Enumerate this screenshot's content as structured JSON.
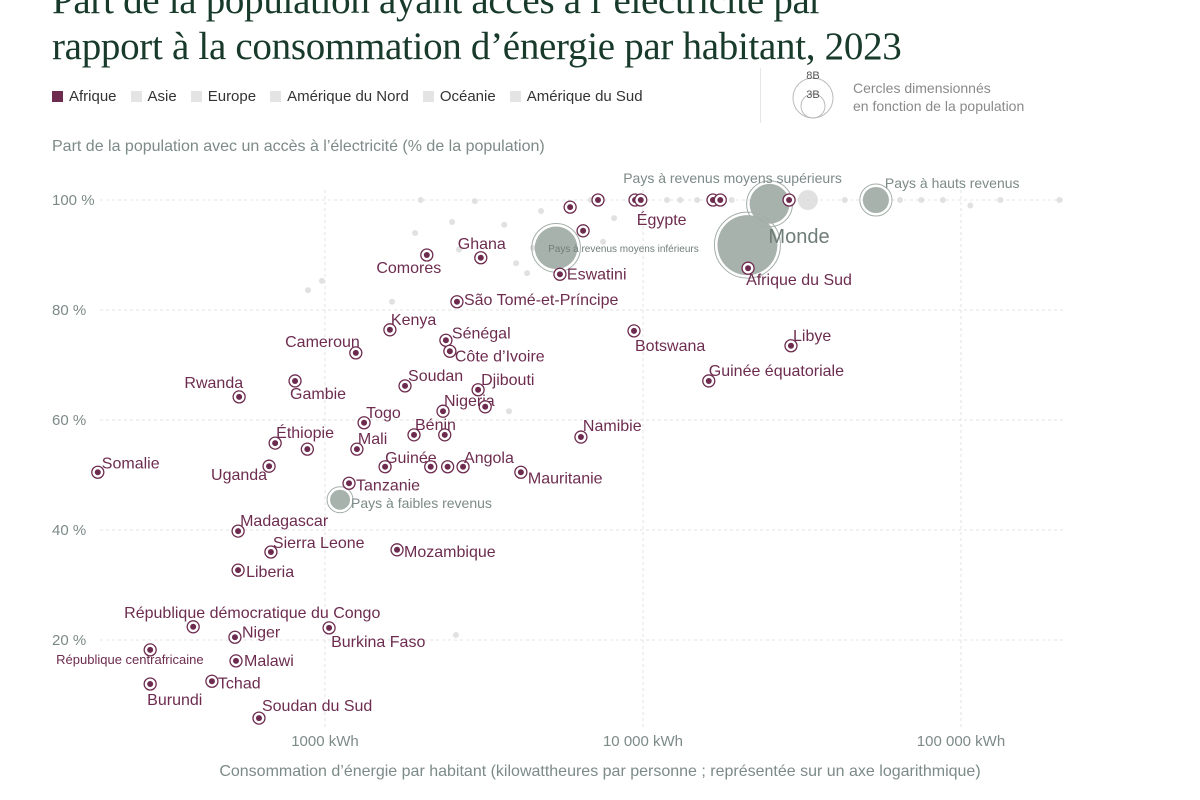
{
  "title": {
    "line1": "Part de la population ayant accès à l’électricité par",
    "line2": "rapport à la consommation d’énergie par habitant, 2023"
  },
  "legend": {
    "items": [
      {
        "label": "Afrique",
        "color": "#6d2c4f"
      },
      {
        "label": "Asie",
        "color": "#e4e4e4"
      },
      {
        "label": "Europe",
        "color": "#e4e4e4"
      },
      {
        "label": "Amérique du Nord",
        "color": "#e4e4e4"
      },
      {
        "label": "Océanie",
        "color": "#e4e4e4"
      },
      {
        "label": "Amérique du Sud",
        "color": "#e4e4e4"
      }
    ],
    "size_key": {
      "large": "8B",
      "small": "3B",
      "note_line1": "Cercles dimensionnés",
      "note_line2": "en fonction de la population"
    }
  },
  "colors": {
    "africa": "#6d2c4f",
    "other": "#dcdcdc",
    "aggregate": "#a3aea9",
    "axis_text": "#7c8a88",
    "title": "#173a2b"
  },
  "chart_data": {
    "type": "scatter",
    "title": "Part de la population ayant accès à l’électricité par rapport à la consommation d’énergie par habitant, 2023",
    "ylabel": "Part de la population avec un accès à l’électricité (% de la population)",
    "xlabel": "Consommation d’énergie par habitant (kilowattheures par personne ; représentée sur un axe logarithmique)",
    "x_scale": "log",
    "xlim": [
      180,
      215000
    ],
    "ylim": [
      0,
      100
    ],
    "x_ticks": [
      {
        "value": 1000,
        "label": "1000 kWh"
      },
      {
        "value": 10000,
        "label": "10 000 kWh"
      },
      {
        "value": 100000,
        "label": "100 000 kWh"
      }
    ],
    "y_ticks": [
      {
        "value": 20,
        "label": "20 %"
      },
      {
        "value": 40,
        "label": "40 %"
      },
      {
        "value": 60,
        "label": "60 %"
      },
      {
        "value": 80,
        "label": "80 %"
      },
      {
        "value": 100,
        "label": "100 %"
      }
    ],
    "grid": true,
    "africa": [
      {
        "name": "Somalie",
        "x": 193,
        "y": 50.5
      },
      {
        "name": "Uganda",
        "x": 667,
        "y": 51.6
      },
      {
        "name": "Rwanda",
        "x": 537,
        "y": 64.2
      },
      {
        "name": "Gambie",
        "x": 805,
        "y": 67.1
      },
      {
        "name": "Cameroun",
        "x": 1250,
        "y": 72.2
      },
      {
        "name": "Éthiopie",
        "x": 697,
        "y": 55.8
      },
      {
        "name": "",
        "x": 880,
        "y": 54.7
      },
      {
        "name": "Togo",
        "x": 1327,
        "y": 59.5
      },
      {
        "name": "Mali",
        "x": 1260,
        "y": 54.7
      },
      {
        "name": "Kenya",
        "x": 1600,
        "y": 76.4
      },
      {
        "name": "Soudan",
        "x": 1785,
        "y": 66.2
      },
      {
        "name": "Guinée",
        "x": 1545,
        "y": 51.5
      },
      {
        "name": "Tanzanie",
        "x": 1190,
        "y": 48.5
      },
      {
        "name": "Bénin",
        "x": 1905,
        "y": 57.3
      },
      {
        "name": "Nigeria",
        "x": 2350,
        "y": 61.6
      },
      {
        "name": "",
        "x": 2380,
        "y": 57.3
      },
      {
        "name": "",
        "x": 2150,
        "y": 51.5
      },
      {
        "name": "",
        "x": 2430,
        "y": 51.5
      },
      {
        "name": "Angola",
        "x": 2717,
        "y": 51.5
      },
      {
        "name": "Djibouti",
        "x": 3030,
        "y": 65.5
      },
      {
        "name": "",
        "x": 3190,
        "y": 62.4
      },
      {
        "name": "Sénégal",
        "x": 2400,
        "y": 74.5
      },
      {
        "name": "Côte d’Ivoire",
        "x": 2470,
        "y": 72.5
      },
      {
        "name": "São Tomé-et-Príncipe",
        "x": 2600,
        "y": 81.5
      },
      {
        "name": "Ghana",
        "x": 3090,
        "y": 89.5
      },
      {
        "name": "Comores",
        "x": 2090,
        "y": 90
      },
      {
        "name": "Eswatini",
        "x": 5480,
        "y": 86.5
      },
      {
        "name": "",
        "x": 5900,
        "y": 98.7
      },
      {
        "name": "",
        "x": 6480,
        "y": 94.4
      },
      {
        "name": "",
        "x": 7220,
        "y": 100
      },
      {
        "name": "",
        "x": 9440,
        "y": 100
      },
      {
        "name": "Égypte",
        "x": 9840,
        "y": 100
      },
      {
        "name": "",
        "x": 16600,
        "y": 100
      },
      {
        "name": "",
        "x": 17500,
        "y": 100
      },
      {
        "name": "",
        "x": 28800,
        "y": 100
      },
      {
        "name": "Afrique du Sud",
        "x": 21400,
        "y": 87.6
      },
      {
        "name": "Botswana",
        "x": 9370,
        "y": 76.2
      },
      {
        "name": "Libye",
        "x": 29200,
        "y": 73.5
      },
      {
        "name": "Guinée équatoriale",
        "x": 16100,
        "y": 67.1
      },
      {
        "name": "Namibie",
        "x": 6380,
        "y": 56.9
      },
      {
        "name": "Mauritanie",
        "x": 4130,
        "y": 50.5
      },
      {
        "name": "Mozambique",
        "x": 1685,
        "y": 36.4
      },
      {
        "name": "Madagascar",
        "x": 533,
        "y": 39.8
      },
      {
        "name": "Sierra Leone",
        "x": 676,
        "y": 36
      },
      {
        "name": "Liberia",
        "x": 533,
        "y": 32.7
      },
      {
        "name": "République démocratique du Congo",
        "x": 385,
        "y": 22.4
      },
      {
        "name": "Niger",
        "x": 521,
        "y": 20.5
      },
      {
        "name": "Burkina Faso",
        "x": 1030,
        "y": 22.2
      },
      {
        "name": "République centrafricaine",
        "x": 282,
        "y": 18.2
      },
      {
        "name": "Malawi",
        "x": 525,
        "y": 16.2
      },
      {
        "name": "Tchad",
        "x": 441,
        "y": 12.5
      },
      {
        "name": "Burundi",
        "x": 282,
        "y": 12
      },
      {
        "name": "Soudan du Sud",
        "x": 620,
        "y": 5.8
      }
    ],
    "aggregates": [
      {
        "name": "Pays à faibles revenus",
        "x": 1115,
        "y": 45.5,
        "population_b": 0.7
      },
      {
        "name": "Pays à revenus moyens inférieurs",
        "x": 5330,
        "y": 91.3,
        "population_b": 3.2
      },
      {
        "name": "Pays à revenus moyens supérieurs",
        "x": 25000,
        "y": 99.3,
        "population_b": 2.8
      },
      {
        "name": "Pays à hauts revenus",
        "x": 54000,
        "y": 100,
        "population_b": 1.2
      },
      {
        "name": "Monde",
        "x": 21300,
        "y": 91.8,
        "population_b": 8.1
      }
    ],
    "other_countries": [
      {
        "x": 884,
        "y": 83.6
      },
      {
        "x": 978,
        "y": 85.3
      },
      {
        "x": 1625,
        "y": 81.5
      },
      {
        "x": 1920,
        "y": 94
      },
      {
        "x": 2000,
        "y": 100
      },
      {
        "x": 2510,
        "y": 96
      },
      {
        "x": 2640,
        "y": 91
      },
      {
        "x": 2960,
        "y": 99.8
      },
      {
        "x": 3660,
        "y": 95.5
      },
      {
        "x": 3990,
        "y": 88.5
      },
      {
        "x": 4320,
        "y": 86.7
      },
      {
        "x": 4510,
        "y": 91.3
      },
      {
        "x": 4780,
        "y": 98
      },
      {
        "x": 6860,
        "y": 100
      },
      {
        "x": 7490,
        "y": 92.4
      },
      {
        "x": 8110,
        "y": 96.7
      },
      {
        "x": 11900,
        "y": 100
      },
      {
        "x": 13100,
        "y": 100
      },
      {
        "x": 14800,
        "y": 100
      },
      {
        "x": 19000,
        "y": 100
      },
      {
        "x": 33000,
        "y": 100
      },
      {
        "x": 43100,
        "y": 100
      },
      {
        "x": 64300,
        "y": 100
      },
      {
        "x": 75000,
        "y": 100
      },
      {
        "x": 87700,
        "y": 100
      },
      {
        "x": 107000,
        "y": 99
      },
      {
        "x": 133000,
        "y": 100
      },
      {
        "x": 204000,
        "y": 100
      },
      {
        "x": 2580,
        "y": 20.9
      },
      {
        "x": 3790,
        "y": 61.6
      }
    ]
  }
}
